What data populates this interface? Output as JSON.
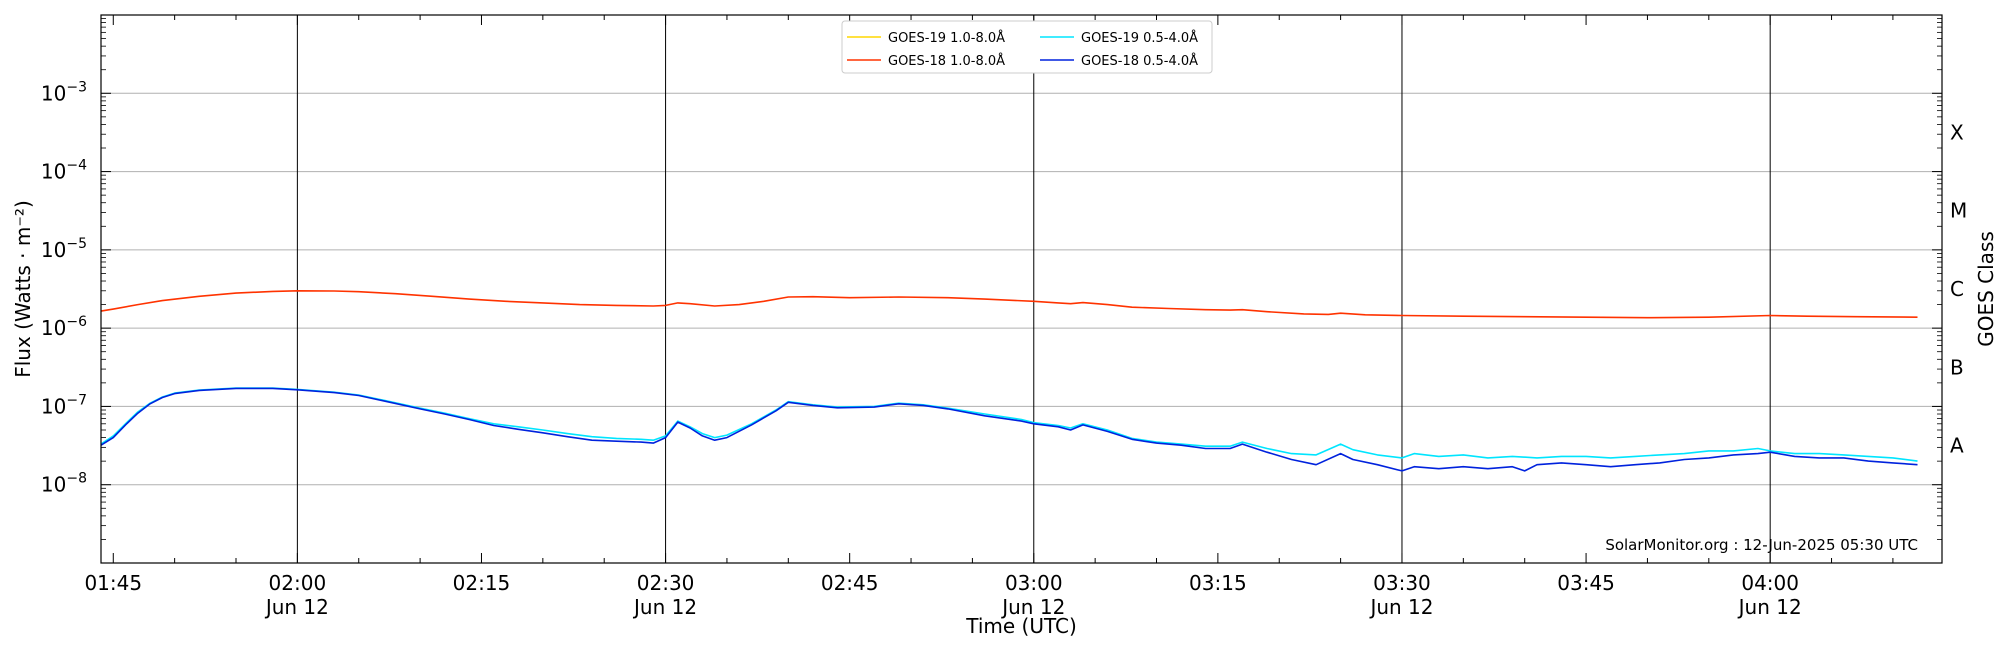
{
  "chart_data": {
    "type": "line",
    "xlabel": "Time (UTC)",
    "ylabel": "Flux (Watts · m⁻²)",
    "right_axis_label": "GOES Class",
    "y_scale": "log",
    "ylim": [
      1e-09,
      0.01
    ],
    "xlim": [
      "01:44",
      "04:14"
    ],
    "grid": "horizontal lines at decades 1e-8 to 1e-3",
    "legend_position": "top-center",
    "credit": "SolarMonitor.org : 12-Jun-2025 05:30 UTC",
    "y_ticks": [
      {
        "value": 1e-08,
        "base": "10",
        "exp": "−8"
      },
      {
        "value": 1e-07,
        "base": "10",
        "exp": "−7"
      },
      {
        "value": 1e-06,
        "base": "10",
        "exp": "−6"
      },
      {
        "value": 1e-05,
        "base": "10",
        "exp": "−5"
      },
      {
        "value": 0.0001,
        "base": "10",
        "exp": "−4"
      },
      {
        "value": 0.001,
        "base": "10",
        "exp": "−3"
      }
    ],
    "x_ticks": [
      {
        "time": "01:45",
        "label": "01:45",
        "date": ""
      },
      {
        "time": "02:00",
        "label": "02:00",
        "date": "Jun 12"
      },
      {
        "time": "02:15",
        "label": "02:15",
        "date": ""
      },
      {
        "time": "02:30",
        "label": "02:30",
        "date": "Jun 12"
      },
      {
        "time": "02:45",
        "label": "02:45",
        "date": ""
      },
      {
        "time": "03:00",
        "label": "03:00",
        "date": "Jun 12"
      },
      {
        "time": "03:15",
        "label": "03:15",
        "date": ""
      },
      {
        "time": "03:30",
        "label": "03:30",
        "date": "Jun 12"
      },
      {
        "time": "03:45",
        "label": "03:45",
        "date": ""
      },
      {
        "time": "04:00",
        "label": "04:00",
        "date": "Jun 12"
      }
    ],
    "vertical_lines": [
      "02:00",
      "02:30",
      "03:00",
      "03:30",
      "04:00"
    ],
    "goes_classes": [
      {
        "label": "A",
        "value": 3.16e-08
      },
      {
        "label": "B",
        "value": 3.16e-07
      },
      {
        "label": "C",
        "value": 3.16e-06
      },
      {
        "label": "M",
        "value": 3.16e-05
      },
      {
        "label": "X",
        "value": 0.000316
      }
    ],
    "series": [
      {
        "name": "GOES-19 1.0-8.0Å",
        "color": "#ffd700",
        "points": []
      },
      {
        "name": "GOES-19 0.5-4.0Å",
        "color": "#00e5ff",
        "points": [
          [
            "01:44",
            3.3e-08
          ],
          [
            "01:45",
            4.2e-08
          ],
          [
            "01:46",
            6e-08
          ],
          [
            "01:47",
            8.5e-08
          ],
          [
            "01:48",
            1.1e-07
          ],
          [
            "01:49",
            1.32e-07
          ],
          [
            "01:50",
            1.48e-07
          ],
          [
            "01:52",
            1.62e-07
          ],
          [
            "01:55",
            1.72e-07
          ],
          [
            "01:58",
            1.72e-07
          ],
          [
            "02:00",
            1.65e-07
          ],
          [
            "02:03",
            1.52e-07
          ],
          [
            "02:05",
            1.4e-07
          ],
          [
            "02:07",
            1.2e-07
          ],
          [
            "02:10",
            9.5e-08
          ],
          [
            "02:12",
            8.2e-08
          ],
          [
            "02:14",
            7e-08
          ],
          [
            "02:16",
            6e-08
          ],
          [
            "02:18",
            5.5e-08
          ],
          [
            "02:20",
            5e-08
          ],
          [
            "02:22",
            4.5e-08
          ],
          [
            "02:24",
            4.1e-08
          ],
          [
            "02:26",
            3.9e-08
          ],
          [
            "02:28",
            3.8e-08
          ],
          [
            "02:29",
            3.7e-08
          ],
          [
            "02:30",
            4.2e-08
          ],
          [
            "02:31",
            6.5e-08
          ],
          [
            "02:32",
            5.5e-08
          ],
          [
            "02:33",
            4.5e-08
          ],
          [
            "02:34",
            4e-08
          ],
          [
            "02:35",
            4.3e-08
          ],
          [
            "02:37",
            6e-08
          ],
          [
            "02:39",
            9e-08
          ],
          [
            "02:40",
            1.15e-07
          ],
          [
            "02:42",
            1.05e-07
          ],
          [
            "02:44",
            9.8e-08
          ],
          [
            "02:47",
            1e-07
          ],
          [
            "02:49",
            1.1e-07
          ],
          [
            "02:51",
            1.05e-07
          ],
          [
            "02:53",
            9.5e-08
          ],
          [
            "02:56",
            8e-08
          ],
          [
            "02:59",
            6.8e-08
          ],
          [
            "03:00",
            6.2e-08
          ],
          [
            "03:02",
            5.7e-08
          ],
          [
            "03:03",
            5.3e-08
          ],
          [
            "03:04",
            6e-08
          ],
          [
            "03:06",
            5e-08
          ],
          [
            "03:08",
            3.9e-08
          ],
          [
            "03:10",
            3.5e-08
          ],
          [
            "03:12",
            3.3e-08
          ],
          [
            "03:14",
            3.1e-08
          ],
          [
            "03:16",
            3.1e-08
          ],
          [
            "03:17",
            3.5e-08
          ],
          [
            "03:19",
            2.9e-08
          ],
          [
            "03:21",
            2.5e-08
          ],
          [
            "03:23",
            2.4e-08
          ],
          [
            "03:25",
            3.3e-08
          ],
          [
            "03:26",
            2.8e-08
          ],
          [
            "03:28",
            2.4e-08
          ],
          [
            "03:30",
            2.2e-08
          ],
          [
            "03:31",
            2.5e-08
          ],
          [
            "03:33",
            2.3e-08
          ],
          [
            "03:35",
            2.4e-08
          ],
          [
            "03:37",
            2.2e-08
          ],
          [
            "03:39",
            2.3e-08
          ],
          [
            "03:41",
            2.2e-08
          ],
          [
            "03:43",
            2.3e-08
          ],
          [
            "03:45",
            2.3e-08
          ],
          [
            "03:47",
            2.2e-08
          ],
          [
            "03:49",
            2.3e-08
          ],
          [
            "03:51",
            2.4e-08
          ],
          [
            "03:53",
            2.5e-08
          ],
          [
            "03:55",
            2.7e-08
          ],
          [
            "03:57",
            2.7e-08
          ],
          [
            "03:59",
            2.9e-08
          ],
          [
            "04:00",
            2.7e-08
          ],
          [
            "04:02",
            2.5e-08
          ],
          [
            "04:04",
            2.5e-08
          ],
          [
            "04:06",
            2.4e-08
          ],
          [
            "04:08",
            2.3e-08
          ],
          [
            "04:10",
            2.2e-08
          ],
          [
            "04:12",
            2e-08
          ]
        ]
      },
      {
        "name": "GOES-18 1.0-8.0Å",
        "color": "#ff3300",
        "points": [
          [
            "01:44",
            1.65e-06
          ],
          [
            "01:45",
            1.75e-06
          ],
          [
            "01:47",
            2e-06
          ],
          [
            "01:49",
            2.25e-06
          ],
          [
            "01:52",
            2.55e-06
          ],
          [
            "01:55",
            2.8e-06
          ],
          [
            "01:58",
            2.95e-06
          ],
          [
            "02:00",
            3e-06
          ],
          [
            "02:03",
            2.98e-06
          ],
          [
            "02:05",
            2.92e-06
          ],
          [
            "02:08",
            2.75e-06
          ],
          [
            "02:11",
            2.55e-06
          ],
          [
            "02:14",
            2.35e-06
          ],
          [
            "02:17",
            2.2e-06
          ],
          [
            "02:20",
            2.1e-06
          ],
          [
            "02:23",
            2e-06
          ],
          [
            "02:26",
            1.95e-06
          ],
          [
            "02:29",
            1.92e-06
          ],
          [
            "02:30",
            1.95e-06
          ],
          [
            "02:31",
            2.1e-06
          ],
          [
            "02:32",
            2.05e-06
          ],
          [
            "02:34",
            1.92e-06
          ],
          [
            "02:36",
            2e-06
          ],
          [
            "02:38",
            2.2e-06
          ],
          [
            "02:40",
            2.5e-06
          ],
          [
            "02:42",
            2.52e-06
          ],
          [
            "02:45",
            2.45e-06
          ],
          [
            "02:49",
            2.5e-06
          ],
          [
            "02:53",
            2.45e-06
          ],
          [
            "02:56",
            2.35e-06
          ],
          [
            "03:00",
            2.2e-06
          ],
          [
            "03:02",
            2.1e-06
          ],
          [
            "03:03",
            2.05e-06
          ],
          [
            "03:04",
            2.12e-06
          ],
          [
            "03:06",
            2e-06
          ],
          [
            "03:08",
            1.85e-06
          ],
          [
            "03:11",
            1.78e-06
          ],
          [
            "03:14",
            1.72e-06
          ],
          [
            "03:16",
            1.7e-06
          ],
          [
            "03:17",
            1.72e-06
          ],
          [
            "03:19",
            1.62e-06
          ],
          [
            "03:22",
            1.52e-06
          ],
          [
            "03:24",
            1.5e-06
          ],
          [
            "03:25",
            1.55e-06
          ],
          [
            "03:27",
            1.48e-06
          ],
          [
            "03:30",
            1.45e-06
          ],
          [
            "03:35",
            1.42e-06
          ],
          [
            "03:40",
            1.4e-06
          ],
          [
            "03:45",
            1.38e-06
          ],
          [
            "03:50",
            1.36e-06
          ],
          [
            "03:55",
            1.38e-06
          ],
          [
            "04:00",
            1.45e-06
          ],
          [
            "04:03",
            1.42e-06
          ],
          [
            "04:07",
            1.4e-06
          ],
          [
            "04:12",
            1.38e-06
          ]
        ]
      },
      {
        "name": "GOES-18 0.5-4.0Å",
        "color": "#0022dd",
        "points": [
          [
            "01:44",
            3.2e-08
          ],
          [
            "01:45",
            4e-08
          ],
          [
            "01:46",
            5.8e-08
          ],
          [
            "01:47",
            8.2e-08
          ],
          [
            "01:48",
            1.08e-07
          ],
          [
            "01:49",
            1.3e-07
          ],
          [
            "01:50",
            1.46e-07
          ],
          [
            "01:52",
            1.6e-07
          ],
          [
            "01:55",
            1.7e-07
          ],
          [
            "01:58",
            1.7e-07
          ],
          [
            "02:00",
            1.63e-07
          ],
          [
            "02:03",
            1.5e-07
          ],
          [
            "02:05",
            1.38e-07
          ],
          [
            "02:07",
            1.18e-07
          ],
          [
            "02:10",
            9.3e-08
          ],
          [
            "02:12",
            8e-08
          ],
          [
            "02:14",
            6.8e-08
          ],
          [
            "02:16",
            5.7e-08
          ],
          [
            "02:18",
            5.1e-08
          ],
          [
            "02:20",
            4.6e-08
          ],
          [
            "02:22",
            4.1e-08
          ],
          [
            "02:24",
            3.7e-08
          ],
          [
            "02:26",
            3.6e-08
          ],
          [
            "02:28",
            3.5e-08
          ],
          [
            "02:29",
            3.4e-08
          ],
          [
            "02:30",
            4e-08
          ],
          [
            "02:31",
            6.3e-08
          ],
          [
            "02:32",
            5.3e-08
          ],
          [
            "02:33",
            4.2e-08
          ],
          [
            "02:34",
            3.7e-08
          ],
          [
            "02:35",
            4e-08
          ],
          [
            "02:37",
            5.8e-08
          ],
          [
            "02:39",
            8.8e-08
          ],
          [
            "02:40",
            1.13e-07
          ],
          [
            "02:42",
            1.03e-07
          ],
          [
            "02:44",
            9.6e-08
          ],
          [
            "02:47",
            9.8e-08
          ],
          [
            "02:49",
            1.08e-07
          ],
          [
            "02:51",
            1.03e-07
          ],
          [
            "02:53",
            9.3e-08
          ],
          [
            "02:56",
            7.6e-08
          ],
          [
            "02:59",
            6.5e-08
          ],
          [
            "03:00",
            6e-08
          ],
          [
            "03:02",
            5.5e-08
          ],
          [
            "03:03",
            5e-08
          ],
          [
            "03:04",
            5.8e-08
          ],
          [
            "03:06",
            4.8e-08
          ],
          [
            "03:08",
            3.8e-08
          ],
          [
            "03:10",
            3.4e-08
          ],
          [
            "03:12",
            3.2e-08
          ],
          [
            "03:14",
            2.9e-08
          ],
          [
            "03:16",
            2.9e-08
          ],
          [
            "03:17",
            3.3e-08
          ],
          [
            "03:19",
            2.6e-08
          ],
          [
            "03:21",
            2.1e-08
          ],
          [
            "03:23",
            1.8e-08
          ],
          [
            "03:25",
            2.5e-08
          ],
          [
            "03:26",
            2.1e-08
          ],
          [
            "03:28",
            1.8e-08
          ],
          [
            "03:30",
            1.5e-08
          ],
          [
            "03:31",
            1.7e-08
          ],
          [
            "03:33",
            1.6e-08
          ],
          [
            "03:35",
            1.7e-08
          ],
          [
            "03:37",
            1.6e-08
          ],
          [
            "03:39",
            1.7e-08
          ],
          [
            "03:40",
            1.5e-08
          ],
          [
            "03:41",
            1.8e-08
          ],
          [
            "03:43",
            1.9e-08
          ],
          [
            "03:45",
            1.8e-08
          ],
          [
            "03:47",
            1.7e-08
          ],
          [
            "03:49",
            1.8e-08
          ],
          [
            "03:51",
            1.9e-08
          ],
          [
            "03:53",
            2.1e-08
          ],
          [
            "03:55",
            2.2e-08
          ],
          [
            "03:57",
            2.4e-08
          ],
          [
            "03:59",
            2.5e-08
          ],
          [
            "04:00",
            2.6e-08
          ],
          [
            "04:02",
            2.3e-08
          ],
          [
            "04:04",
            2.2e-08
          ],
          [
            "04:06",
            2.2e-08
          ],
          [
            "04:08",
            2e-08
          ],
          [
            "04:10",
            1.9e-08
          ],
          [
            "04:12",
            1.8e-08
          ]
        ]
      }
    ]
  }
}
